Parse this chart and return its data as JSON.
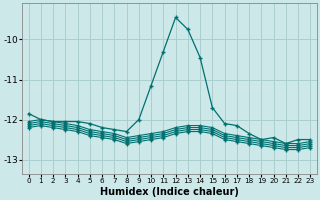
{
  "xlabel": "Humidex (Indice chaleur)",
  "background_color": "#cce8e8",
  "grid_color": "#aacece",
  "line_color": "#007070",
  "xlim": [
    -0.5,
    23.5
  ],
  "ylim": [
    -13.35,
    -9.1
  ],
  "yticks": [
    -13,
    -12,
    -11,
    -10
  ],
  "xticks": [
    0,
    1,
    2,
    3,
    4,
    5,
    6,
    7,
    8,
    9,
    10,
    11,
    12,
    13,
    14,
    15,
    16,
    17,
    18,
    19,
    20,
    21,
    22,
    23
  ],
  "line_main": [
    -11.85,
    -12.0,
    -12.05,
    -12.05,
    -12.05,
    -12.1,
    -12.2,
    -12.25,
    -12.3,
    -12.0,
    -11.15,
    -10.3,
    -9.45,
    -9.75,
    -10.45,
    -11.7,
    -12.1,
    -12.15,
    -12.35,
    -12.5,
    -12.45,
    -12.6,
    -12.5,
    -12.5
  ],
  "line2": [
    -12.05,
    -12.0,
    -12.05,
    -12.1,
    -12.15,
    -12.25,
    -12.3,
    -12.35,
    -12.45,
    -12.4,
    -12.35,
    -12.3,
    -12.2,
    -12.15,
    -12.15,
    -12.2,
    -12.35,
    -12.4,
    -12.45,
    -12.5,
    -12.55,
    -12.6,
    -12.6,
    -12.55
  ],
  "line3": [
    -12.1,
    -12.05,
    -12.1,
    -12.15,
    -12.2,
    -12.3,
    -12.35,
    -12.4,
    -12.5,
    -12.45,
    -12.4,
    -12.35,
    -12.25,
    -12.2,
    -12.2,
    -12.25,
    -12.4,
    -12.45,
    -12.5,
    -12.55,
    -12.6,
    -12.65,
    -12.65,
    -12.6
  ],
  "line4": [
    -12.15,
    -12.1,
    -12.15,
    -12.2,
    -12.25,
    -12.35,
    -12.4,
    -12.45,
    -12.55,
    -12.5,
    -12.45,
    -12.4,
    -12.3,
    -12.25,
    -12.25,
    -12.3,
    -12.45,
    -12.5,
    -12.55,
    -12.6,
    -12.65,
    -12.7,
    -12.7,
    -12.65
  ],
  "line5": [
    -12.2,
    -12.15,
    -12.2,
    -12.25,
    -12.3,
    -12.4,
    -12.45,
    -12.5,
    -12.6,
    -12.55,
    -12.5,
    -12.45,
    -12.35,
    -12.3,
    -12.3,
    -12.35,
    -12.5,
    -12.55,
    -12.6,
    -12.65,
    -12.7,
    -12.75,
    -12.75,
    -12.7
  ]
}
